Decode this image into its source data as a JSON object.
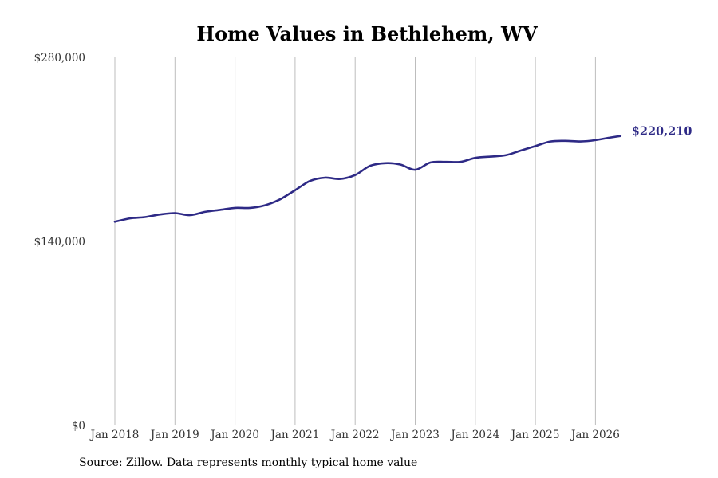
{
  "chart_data": {
    "type": "line",
    "title": "Home Values in Bethlehem, WV",
    "xlabel": "",
    "ylabel": "",
    "ylim": [
      0,
      280000
    ],
    "y_ticks": [
      "$0",
      "$140,000",
      "$280,000"
    ],
    "x_ticks": [
      "Jan 2018",
      "Jan 2019",
      "Jan 2020",
      "Jan 2021",
      "Jan 2022",
      "Jan 2023",
      "Jan 2024",
      "Jan 2025",
      "Jan 2026"
    ],
    "end_label": "$220,210",
    "grid": "vertical",
    "line_color": "#2e2a86",
    "series": [
      {
        "x": [
          "2018-01",
          "2018-04",
          "2018-07",
          "2018-10",
          "2019-01",
          "2019-04",
          "2019-07",
          "2019-10",
          "2020-01",
          "2020-04",
          "2020-07",
          "2020-10",
          "2021-01",
          "2021-04",
          "2021-07",
          "2021-10",
          "2022-01",
          "2022-04",
          "2022-07",
          "2022-10",
          "2023-01",
          "2023-04",
          "2023-07",
          "2023-10",
          "2024-01",
          "2024-04",
          "2024-07",
          "2024-10",
          "2025-01",
          "2025-04",
          "2025-07",
          "2025-10",
          "2026-01",
          "2026-04",
          "2026-06"
        ],
        "values": [
          155000,
          157500,
          158500,
          160500,
          161500,
          160000,
          162500,
          164000,
          165500,
          165500,
          167500,
          172000,
          179000,
          186000,
          188500,
          187500,
          190500,
          197500,
          199500,
          198500,
          194500,
          200000,
          200500,
          200500,
          203500,
          204500,
          205500,
          209000,
          212500,
          216000,
          216500,
          216000,
          217000,
          219000,
          220210
        ]
      }
    ]
  },
  "source": "Source: Zillow. Data represents monthly typical home value"
}
